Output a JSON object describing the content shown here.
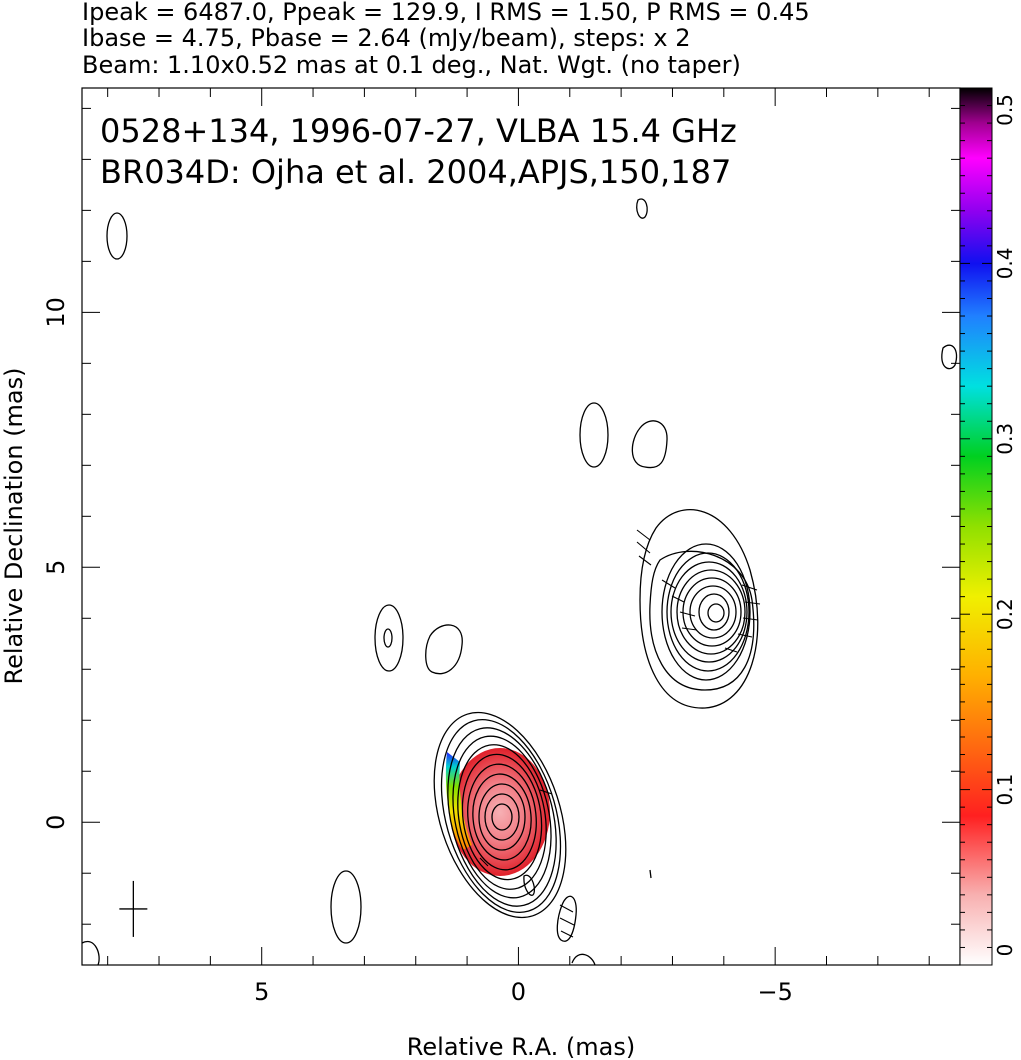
{
  "header": {
    "line1": "Ipeak = 6487.0, Ppeak = 129.9, I RMS = 1.50, P RMS = 0.45",
    "line2": "Ibase = 4.75, Pbase = 2.64 (mJy/beam), steps: x 2",
    "line3": "Beam: 1.10x0.52 mas at 0.1 deg., Nat. Wgt. (no taper)"
  },
  "chart_data": {
    "type": "contour",
    "annotations": [
      "0528+134, 1996-07-27, VLBA 15.4 GHz",
      "BR034D: Ojha et al. 2004,APJS,150,187"
    ],
    "xlabel": "Relative R.A. (mas)",
    "ylabel": "Relative Declination (mas)",
    "xlim": [
      8.5,
      -8.6
    ],
    "ylim": [
      -2.8,
      14.4
    ],
    "x_ticks": [
      {
        "value": 5,
        "label": "5"
      },
      {
        "value": 0,
        "label": "0"
      },
      {
        "value": -5,
        "label": "−5"
      }
    ],
    "y_ticks": [
      {
        "value": 0,
        "label": "0"
      },
      {
        "value": 5,
        "label": "5"
      },
      {
        "value": 10,
        "label": "10"
      }
    ],
    "colorbar": {
      "range": [
        0,
        0.5
      ],
      "ticks": [
        {
          "value": 0,
          "label": "0"
        },
        {
          "value": 0.1,
          "label": "0.1"
        },
        {
          "value": 0.2,
          "label": "0.2"
        },
        {
          "value": 0.3,
          "label": "0.3"
        },
        {
          "value": 0.4,
          "label": "0.4"
        },
        {
          "value": 0.5,
          "label": "0.5"
        }
      ]
    },
    "core": {
      "x": 0.0,
      "y": 0.05
    },
    "jet_component": {
      "x": -3.9,
      "y": 4.05
    },
    "beam_marker": {
      "x": 7.5,
      "y": -1.7
    },
    "contour_colors": {
      "contour": "#000000",
      "core_fill": "#e0202a",
      "core_center": "#f4a0a4"
    }
  }
}
